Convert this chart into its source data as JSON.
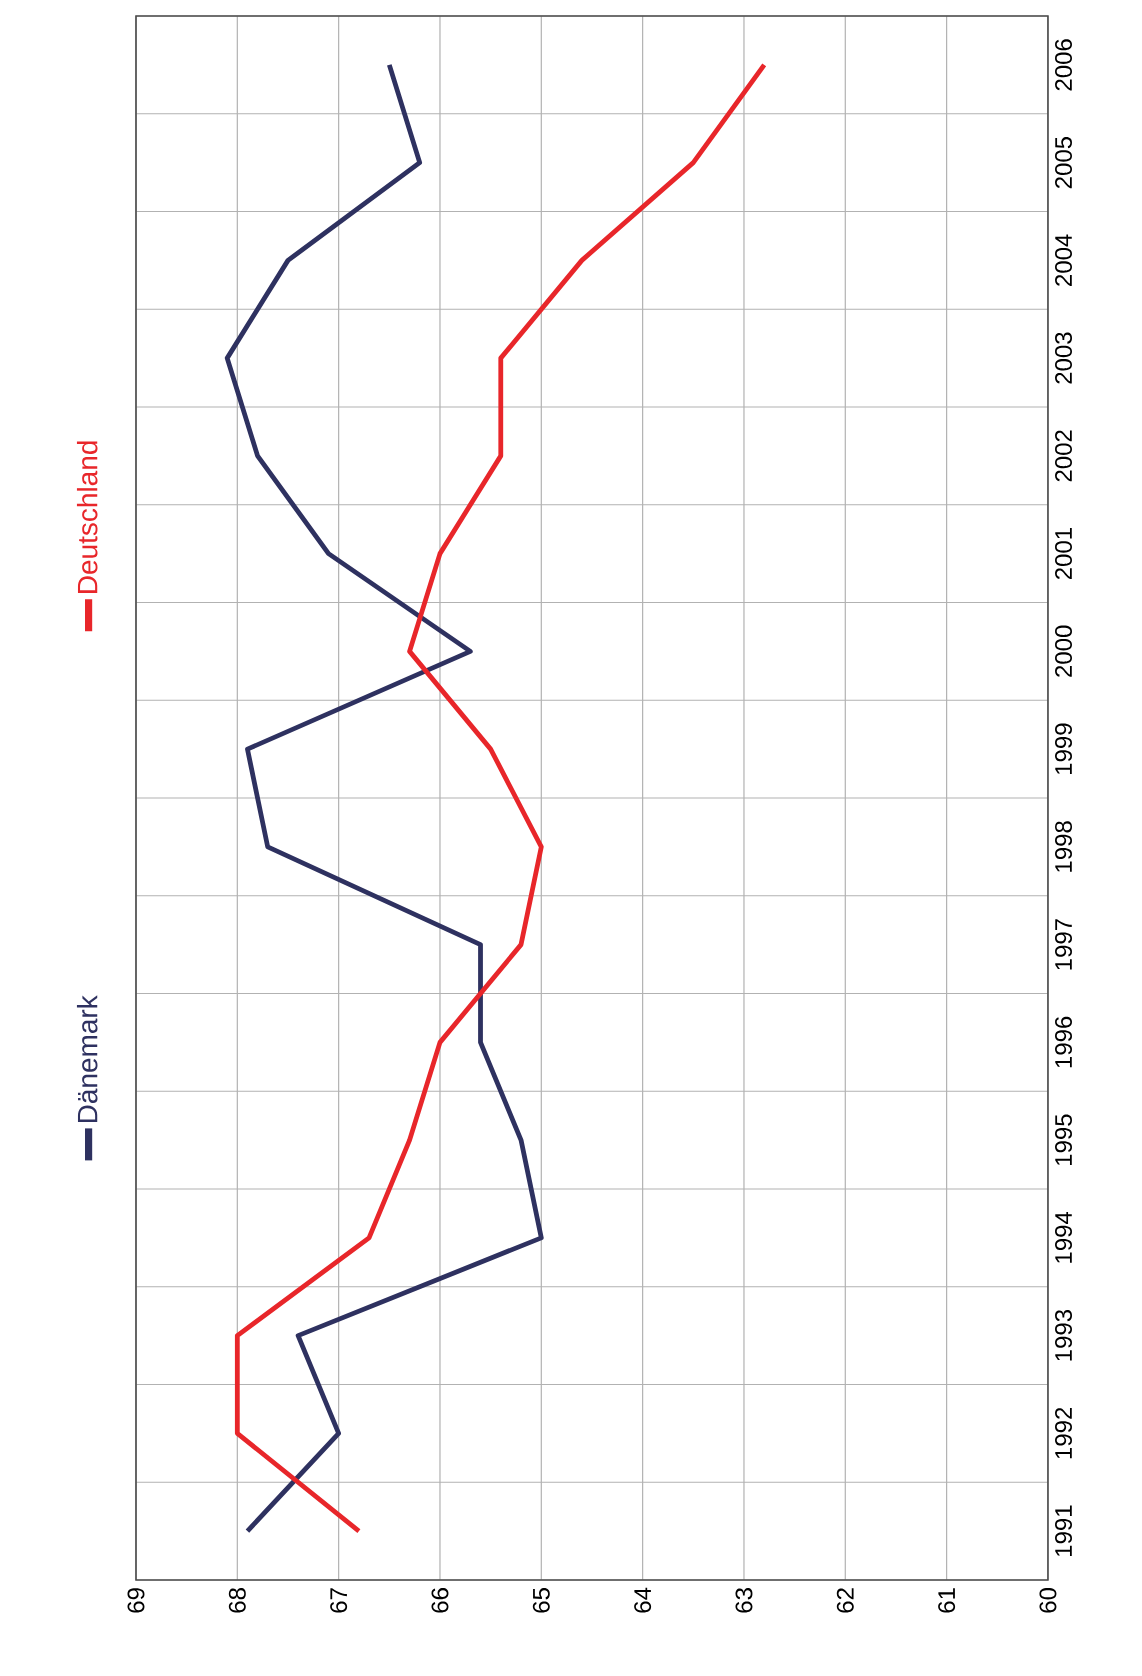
{
  "chart_data": {
    "type": "line",
    "orientation": "horizontal",
    "categories": [
      "2006",
      "2005",
      "2004",
      "2003",
      "2002",
      "2001",
      "2000",
      "1999",
      "1998",
      "1997",
      "1996",
      "1995",
      "1994",
      "1993",
      "1992",
      "1991"
    ],
    "series": [
      {
        "name": "Dänemark",
        "color": "#2e3160",
        "values": [
          66.5,
          66.2,
          67.5,
          68.1,
          67.8,
          67.1,
          65.7,
          67.9,
          67.7,
          65.6,
          65.6,
          65.2,
          65.0,
          67.4,
          67.0,
          67.9
        ]
      },
      {
        "name": "Deutschland",
        "color": "#e8262a",
        "values": [
          62.8,
          63.5,
          64.6,
          65.4,
          65.4,
          66.0,
          66.3,
          65.5,
          65.0,
          65.2,
          66.0,
          66.3,
          66.7,
          68.0,
          68.0,
          66.8
        ]
      }
    ],
    "xlim": [
      69,
      60
    ],
    "xticks": [
      69,
      68,
      67,
      66,
      65,
      64,
      63,
      62,
      61,
      60
    ],
    "grid": true,
    "legend": "left",
    "marker": "none",
    "line_style": "solid"
  }
}
